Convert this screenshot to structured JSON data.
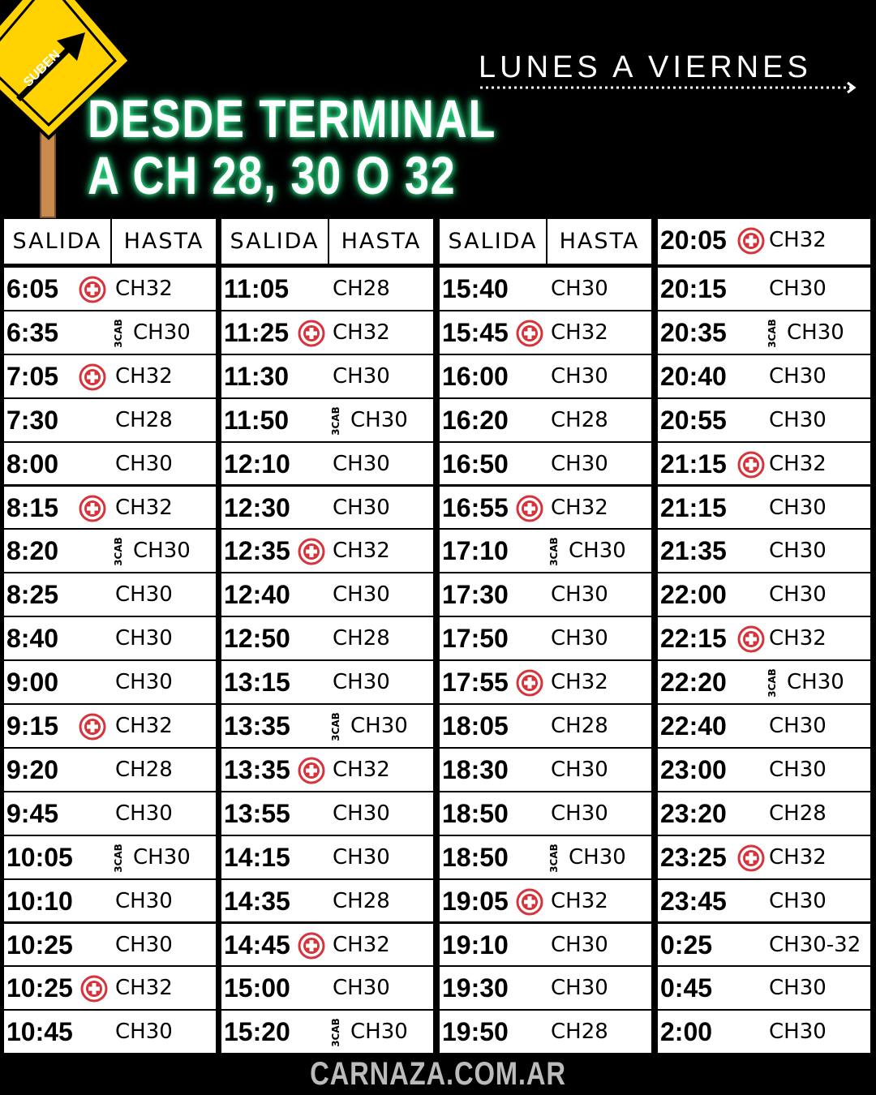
{
  "sign": "SUBEN",
  "title": [
    "DESDE TERMINAL",
    "A CH 28, 30 O 32"
  ],
  "days": "LUNES A VIERNES",
  "footer": "CARNAZA.COM.AR",
  "table": {
    "columns": [
      {
        "header": [
          "SALIDA",
          "HASTA"
        ],
        "rows": [
          {
            "time": "6:05",
            "dest": "CH32",
            "cross": true
          },
          {
            "time": "6:35",
            "dest": "CH30",
            "tag": "3CAB"
          },
          {
            "time": "7:05",
            "dest": "CH32",
            "cross": true
          },
          {
            "time": "7:30",
            "dest": "CH28"
          },
          {
            "time": "8:00",
            "dest": "CH30"
          },
          {
            "time": "8:15",
            "dest": "CH32",
            "cross": true
          },
          {
            "time": "8:20",
            "dest": "CH30",
            "tag": "3CAB"
          },
          {
            "time": "8:25",
            "dest": "CH30"
          },
          {
            "time": "8:40",
            "dest": "CH30"
          },
          {
            "time": "9:00",
            "dest": "CH30"
          },
          {
            "time": "9:15",
            "dest": "CH32",
            "cross": true
          },
          {
            "time": "9:20",
            "dest": "CH28"
          },
          {
            "time": "9:45",
            "dest": "CH30"
          },
          {
            "time": "10:05",
            "dest": "CH30",
            "tag": "3CAB"
          },
          {
            "time": "10:10",
            "dest": "CH30"
          },
          {
            "time": "10:25",
            "dest": "CH30"
          },
          {
            "time": "10:25",
            "dest": "CH32",
            "cross": true
          },
          {
            "time": "10:45",
            "dest": "CH30"
          }
        ]
      },
      {
        "header": [
          "SALIDA",
          "HASTA"
        ],
        "rows": [
          {
            "time": "11:05",
            "dest": "CH28"
          },
          {
            "time": "11:25",
            "dest": "CH32",
            "cross": true
          },
          {
            "time": "11:30",
            "dest": "CH30"
          },
          {
            "time": "11:50",
            "dest": "CH30",
            "tag": "3CAB"
          },
          {
            "time": "12:10",
            "dest": "CH30"
          },
          {
            "time": "12:30",
            "dest": "CH30"
          },
          {
            "time": "12:35",
            "dest": "CH32",
            "cross": true
          },
          {
            "time": "12:40",
            "dest": "CH30"
          },
          {
            "time": "12:50",
            "dest": "CH28"
          },
          {
            "time": "13:15",
            "dest": "CH30"
          },
          {
            "time": "13:35",
            "dest": "CH30",
            "tag": "3CAB"
          },
          {
            "time": "13:35",
            "dest": "CH32",
            "cross": true
          },
          {
            "time": "13:55",
            "dest": "CH30"
          },
          {
            "time": "14:15",
            "dest": "CH30"
          },
          {
            "time": "14:35",
            "dest": "CH28"
          },
          {
            "time": "14:45",
            "dest": "CH32",
            "cross": true
          },
          {
            "time": "15:00",
            "dest": "CH30"
          },
          {
            "time": "15:20",
            "dest": "CH30",
            "tag": "3CAB"
          }
        ]
      },
      {
        "header": [
          "SALIDA",
          "HASTA"
        ],
        "rows": [
          {
            "time": "15:40",
            "dest": "CH30"
          },
          {
            "time": "15:45",
            "dest": "CH32",
            "cross": true
          },
          {
            "time": "16:00",
            "dest": "CH30"
          },
          {
            "time": "16:20",
            "dest": "CH28"
          },
          {
            "time": "16:50",
            "dest": "CH30"
          },
          {
            "time": "16:55",
            "dest": "CH32",
            "cross": true
          },
          {
            "time": "17:10",
            "dest": "CH30",
            "tag": "3CAB"
          },
          {
            "time": "17:30",
            "dest": "CH30"
          },
          {
            "time": "17:50",
            "dest": "CH30"
          },
          {
            "time": "17:55",
            "dest": "CH32",
            "cross": true
          },
          {
            "time": "18:05",
            "dest": "CH28"
          },
          {
            "time": "18:30",
            "dest": "CH30"
          },
          {
            "time": "18:50",
            "dest": "CH30"
          },
          {
            "time": "18:50",
            "dest": "CH30",
            "tag": "3CAB"
          },
          {
            "time": "19:05",
            "dest": "CH32",
            "cross": true
          },
          {
            "time": "19:10",
            "dest": "CH30"
          },
          {
            "time": "19:30",
            "dest": "CH30"
          },
          {
            "time": "19:50",
            "dest": "CH28"
          }
        ]
      },
      {
        "rows": [
          {
            "time": "20:05",
            "dest": "CH32",
            "cross": true
          },
          {
            "time": "20:15",
            "dest": "CH30"
          },
          {
            "time": "20:35",
            "dest": "CH30",
            "tag": "3CAB"
          },
          {
            "time": "20:40",
            "dest": "CH30"
          },
          {
            "time": "20:55",
            "dest": "CH30"
          },
          {
            "time": "21:15",
            "dest": "CH32",
            "cross": true
          },
          {
            "time": "21:15",
            "dest": "CH30"
          },
          {
            "time": "21:35",
            "dest": "CH30"
          },
          {
            "time": "22:00",
            "dest": "CH30"
          },
          {
            "time": "22:15",
            "dest": "CH32",
            "cross": true
          },
          {
            "time": "22:20",
            "dest": "CH30",
            "tag": "3CAB"
          },
          {
            "time": "22:40",
            "dest": "CH30"
          },
          {
            "time": "23:00",
            "dest": "CH30"
          },
          {
            "time": "23:20",
            "dest": "CH28"
          },
          {
            "time": "23:25",
            "dest": "CH32",
            "cross": true
          },
          {
            "time": "23:45",
            "dest": "CH30"
          },
          {
            "time": "0:25",
            "dest": "CH30-32"
          },
          {
            "time": "0:45",
            "dest": "CH30"
          },
          {
            "time": "2:00",
            "dest": "CH30"
          }
        ]
      }
    ]
  }
}
